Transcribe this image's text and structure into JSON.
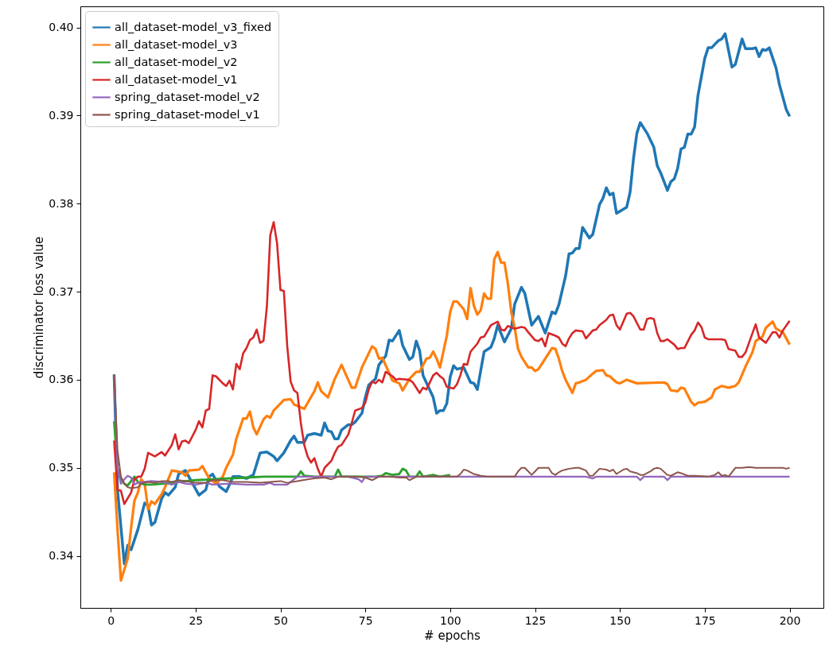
{
  "chart_data": {
    "type": "line",
    "xlabel": "# epochs",
    "ylabel": "discriminator loss value",
    "xlim": [
      -8.95,
      209.95
    ],
    "xticks": [
      0,
      25,
      50,
      75,
      100,
      125,
      150,
      175,
      200
    ],
    "ylim": [
      0.3341,
      0.4024
    ],
    "yticks": [
      0.34,
      0.35,
      0.36,
      0.37,
      0.38,
      0.39,
      {
        "value": 0.4,
        "label": "0.40"
      }
    ],
    "grid": false,
    "legend": "top left",
    "series": [
      {
        "name": "all_dataset-model_v3_fixed",
        "color": "#1f77b4",
        "x": [
          1,
          2,
          4,
          5,
          6,
          8,
          10,
          11,
          12,
          13,
          15,
          16,
          17,
          19,
          20,
          22,
          26,
          28,
          29,
          30,
          32,
          34,
          35,
          36,
          38,
          40,
          42,
          44,
          46,
          48,
          49,
          51,
          53,
          54,
          55,
          57,
          58,
          60,
          62,
          63,
          64,
          65,
          66,
          67,
          68,
          70,
          71,
          72,
          74,
          75,
          76,
          78,
          79,
          81,
          82,
          83,
          85,
          86,
          88,
          89,
          90,
          91,
          92,
          95,
          96,
          97,
          98,
          99,
          100,
          101,
          102,
          104,
          106,
          107,
          108,
          110,
          112,
          113,
          114,
          116,
          118,
          119,
          121,
          122,
          124,
          126,
          128,
          130,
          131,
          132,
          134,
          135,
          136,
          137,
          138,
          139,
          141,
          142,
          144,
          145,
          146,
          147,
          148,
          149,
          152,
          153,
          154,
          155,
          156,
          158,
          160,
          161,
          162,
          164,
          165,
          166,
          167,
          168,
          169,
          170,
          171,
          172,
          173,
          175,
          176,
          177,
          178,
          179,
          180,
          181,
          183,
          184,
          186,
          187,
          189,
          190,
          191,
          192,
          193,
          194,
          196,
          197,
          199,
          200
        ],
        "values": [
          0.3606,
          0.3475,
          0.3391,
          0.3412,
          0.3407,
          0.343,
          0.346,
          0.3457,
          0.3435,
          0.3438,
          0.3465,
          0.3472,
          0.3469,
          0.3478,
          0.3493,
          0.3497,
          0.3469,
          0.3475,
          0.349,
          0.3493,
          0.3479,
          0.3473,
          0.3481,
          0.349,
          0.349,
          0.3488,
          0.3492,
          0.3517,
          0.3518,
          0.3513,
          0.3508,
          0.3517,
          0.3531,
          0.3536,
          0.3529,
          0.3529,
          0.3537,
          0.3539,
          0.3537,
          0.3551,
          0.3542,
          0.3541,
          0.3533,
          0.3533,
          0.3543,
          0.3549,
          0.3549,
          0.3552,
          0.3562,
          0.358,
          0.3594,
          0.3601,
          0.3617,
          0.3627,
          0.3645,
          0.3644,
          0.3656,
          0.3639,
          0.3623,
          0.3626,
          0.3644,
          0.3633,
          0.3605,
          0.358,
          0.3562,
          0.3565,
          0.3565,
          0.3573,
          0.3603,
          0.3616,
          0.3612,
          0.3614,
          0.3597,
          0.3596,
          0.3589,
          0.3632,
          0.3637,
          0.3647,
          0.3662,
          0.3643,
          0.3658,
          0.3686,
          0.3705,
          0.3698,
          0.3662,
          0.3672,
          0.3653,
          0.3677,
          0.3675,
          0.3685,
          0.3718,
          0.3743,
          0.3744,
          0.3749,
          0.3749,
          0.3773,
          0.3761,
          0.3765,
          0.3799,
          0.3806,
          0.3818,
          0.381,
          0.3812,
          0.3789,
          0.3796,
          0.3813,
          0.3851,
          0.388,
          0.3892,
          0.388,
          0.3864,
          0.3843,
          0.3835,
          0.3815,
          0.3825,
          0.3828,
          0.384,
          0.3862,
          0.3864,
          0.3879,
          0.3879,
          0.3887,
          0.3923,
          0.3965,
          0.3977,
          0.3977,
          0.3981,
          0.3985,
          0.3987,
          0.3993,
          0.3955,
          0.3958,
          0.3987,
          0.3976,
          0.3976,
          0.3977,
          0.3967,
          0.3975,
          0.3974,
          0.3977,
          0.3954,
          0.3935,
          0.3907,
          0.3899
        ]
      },
      {
        "name": "all_dataset-model_v3",
        "color": "#ff7f0e",
        "x": [
          1,
          2,
          3,
          5,
          6,
          7,
          8,
          9,
          10,
          11,
          12,
          13,
          15,
          16,
          18,
          21,
          22,
          23,
          26,
          27,
          29,
          31,
          33,
          34,
          36,
          37,
          39,
          40,
          41,
          42,
          43,
          45,
          46,
          47,
          48,
          51,
          53,
          54,
          57,
          60,
          61,
          62,
          64,
          66,
          68,
          71,
          72,
          74,
          77,
          78,
          79,
          80,
          82,
          83,
          85,
          86,
          88,
          90,
          91,
          93,
          94,
          95,
          96,
          97,
          99,
          100,
          101,
          102,
          104,
          105,
          106,
          107,
          108,
          109,
          110,
          111,
          112,
          113,
          114,
          115,
          116,
          117,
          118,
          119,
          120,
          121,
          123,
          124,
          125,
          126,
          128,
          130,
          131,
          132,
          133,
          134,
          136,
          137,
          138,
          140,
          142,
          143,
          145,
          146,
          147,
          149,
          150,
          152,
          155,
          163,
          164,
          165,
          167,
          168,
          169,
          171,
          172,
          173,
          175,
          177,
          178,
          180,
          182,
          184,
          185,
          187,
          189,
          190,
          192,
          193,
          195,
          196,
          198,
          200
        ],
        "values": [
          0.3495,
          0.343,
          0.3372,
          0.3397,
          0.3432,
          0.3463,
          0.3472,
          0.3487,
          0.3482,
          0.3453,
          0.3462,
          0.3459,
          0.347,
          0.3478,
          0.3497,
          0.3495,
          0.3491,
          0.3497,
          0.3498,
          0.3502,
          0.3488,
          0.3482,
          0.349,
          0.35,
          0.3515,
          0.3533,
          0.3556,
          0.3556,
          0.3564,
          0.3546,
          0.3538,
          0.3555,
          0.3559,
          0.3557,
          0.3565,
          0.3577,
          0.3578,
          0.3572,
          0.3567,
          0.3587,
          0.3597,
          0.3587,
          0.358,
          0.3601,
          0.3617,
          0.3591,
          0.3591,
          0.3614,
          0.3638,
          0.3635,
          0.3624,
          0.3625,
          0.3608,
          0.3599,
          0.3596,
          0.3588,
          0.3601,
          0.3609,
          0.3609,
          0.3624,
          0.3625,
          0.3632,
          0.3624,
          0.3614,
          0.365,
          0.3677,
          0.3689,
          0.3689,
          0.368,
          0.3669,
          0.3704,
          0.3684,
          0.3674,
          0.3679,
          0.3698,
          0.3692,
          0.3692,
          0.3737,
          0.3745,
          0.3733,
          0.3733,
          0.3709,
          0.3677,
          0.3659,
          0.3635,
          0.3626,
          0.3614,
          0.3614,
          0.361,
          0.3612,
          0.3624,
          0.3636,
          0.3635,
          0.3624,
          0.361,
          0.36,
          0.3585,
          0.3596,
          0.3597,
          0.36,
          0.3607,
          0.361,
          0.3611,
          0.3605,
          0.3604,
          0.3597,
          0.3596,
          0.36,
          0.3596,
          0.3597,
          0.3595,
          0.3588,
          0.3587,
          0.3591,
          0.359,
          0.3575,
          0.3571,
          0.3574,
          0.3575,
          0.358,
          0.3589,
          0.3593,
          0.3591,
          0.3593,
          0.3597,
          0.3615,
          0.3631,
          0.3644,
          0.3649,
          0.3659,
          0.3666,
          0.3658,
          0.3654,
          0.364
        ]
      },
      {
        "name": "all_dataset-model_v2",
        "color": "#2ca02c",
        "x": [
          1,
          2,
          3,
          4,
          5,
          6,
          7,
          8,
          10,
          12,
          15,
          20,
          25,
          30,
          35,
          40,
          45,
          50,
          55,
          56,
          57,
          60,
          62,
          64,
          66,
          67,
          68,
          70,
          75,
          78,
          80,
          81,
          83,
          85,
          86,
          87,
          88,
          90,
          91,
          92,
          95,
          97,
          100
        ],
        "values": [
          0.3553,
          0.35,
          0.3488,
          0.3482,
          0.348,
          0.3485,
          0.349,
          0.3484,
          0.3481,
          0.3481,
          0.3482,
          0.3484,
          0.3486,
          0.3487,
          0.3488,
          0.3489,
          0.349,
          0.349,
          0.349,
          0.3496,
          0.3491,
          0.349,
          0.349,
          0.349,
          0.349,
          0.3498,
          0.349,
          0.349,
          0.349,
          0.349,
          0.3491,
          0.3494,
          0.3492,
          0.3493,
          0.3499,
          0.3497,
          0.349,
          0.349,
          0.3496,
          0.349,
          0.3492,
          0.349,
          0.3492
        ]
      },
      {
        "name": "all_dataset-model_v1",
        "color": "#d62728",
        "x": [
          1,
          2,
          3,
          4,
          6,
          7,
          8,
          9,
          10,
          11,
          13,
          15,
          16,
          18,
          19,
          20,
          21,
          22,
          23,
          25,
          26,
          27,
          28,
          29,
          30,
          31,
          33,
          34,
          35,
          36,
          37,
          38,
          39,
          40,
          41,
          42,
          43,
          44,
          45,
          46,
          47,
          48,
          49,
          50,
          51,
          52,
          53,
          54,
          55,
          56,
          57,
          58,
          59,
          60,
          61,
          62,
          63,
          65,
          66,
          67,
          68,
          70,
          71,
          72,
          74,
          75,
          76,
          77,
          78,
          79,
          80,
          81,
          83,
          84,
          85,
          88,
          89,
          91,
          92,
          93,
          95,
          96,
          97,
          98,
          99,
          101,
          102,
          103,
          104,
          105,
          106,
          108,
          109,
          110,
          112,
          114,
          115,
          116,
          117,
          119,
          121,
          122,
          123,
          125,
          126,
          127,
          128,
          129,
          131,
          132,
          133,
          134,
          135,
          136,
          137,
          139,
          140,
          142,
          143,
          144,
          146,
          147,
          148,
          149,
          150,
          152,
          153,
          154,
          156,
          157,
          158,
          159,
          160,
          161,
          162,
          163,
          164,
          166,
          167,
          168,
          169,
          171,
          172,
          173,
          174,
          175,
          176,
          178,
          180,
          181,
          182,
          184,
          185,
          186,
          187,
          190,
          191,
          193,
          195,
          196,
          197,
          198,
          200
        ],
        "values": [
          0.3531,
          0.3475,
          0.3474,
          0.3459,
          0.3472,
          0.3487,
          0.349,
          0.349,
          0.3499,
          0.3517,
          0.3513,
          0.3518,
          0.3514,
          0.3526,
          0.3538,
          0.3521,
          0.353,
          0.3531,
          0.3528,
          0.3543,
          0.3553,
          0.3546,
          0.3565,
          0.3567,
          0.3605,
          0.3604,
          0.3596,
          0.3593,
          0.3599,
          0.3589,
          0.3618,
          0.3612,
          0.363,
          0.3636,
          0.3645,
          0.3648,
          0.3657,
          0.3642,
          0.3644,
          0.3683,
          0.3764,
          0.3779,
          0.3755,
          0.3702,
          0.3701,
          0.3638,
          0.3598,
          0.3588,
          0.3585,
          0.3551,
          0.3526,
          0.3513,
          0.3506,
          0.3511,
          0.3499,
          0.349,
          0.35,
          0.3508,
          0.3517,
          0.3524,
          0.3526,
          0.3538,
          0.3551,
          0.3565,
          0.3568,
          0.3574,
          0.3589,
          0.3598,
          0.3596,
          0.36,
          0.3597,
          0.3609,
          0.3604,
          0.36,
          0.3601,
          0.36,
          0.3597,
          0.3585,
          0.3591,
          0.3589,
          0.3605,
          0.3608,
          0.3604,
          0.3601,
          0.3592,
          0.359,
          0.3595,
          0.3605,
          0.3618,
          0.3617,
          0.3632,
          0.3641,
          0.3648,
          0.3649,
          0.3662,
          0.3666,
          0.3657,
          0.3656,
          0.3661,
          0.3658,
          0.366,
          0.3659,
          0.3654,
          0.3645,
          0.3644,
          0.3647,
          0.3638,
          0.3653,
          0.365,
          0.3648,
          0.3641,
          0.3638,
          0.3647,
          0.3653,
          0.3656,
          0.3655,
          0.3647,
          0.3656,
          0.3657,
          0.3662,
          0.3668,
          0.3673,
          0.3674,
          0.3662,
          0.3657,
          0.3675,
          0.3676,
          0.3672,
          0.3657,
          0.3657,
          0.3669,
          0.367,
          0.3669,
          0.3653,
          0.3644,
          0.3644,
          0.3646,
          0.364,
          0.3635,
          0.3636,
          0.3636,
          0.3651,
          0.3656,
          0.3665,
          0.366,
          0.3648,
          0.3646,
          0.3646,
          0.3646,
          0.3645,
          0.3635,
          0.3633,
          0.3626,
          0.3626,
          0.3631,
          0.3663,
          0.3648,
          0.3642,
          0.3654,
          0.3654,
          0.3648,
          0.3656,
          0.3667
        ]
      },
      {
        "name": "spring_dataset-model_v2",
        "color": "#9467bd",
        "x": [
          1,
          2,
          3,
          4,
          5,
          6,
          7,
          8,
          10,
          12,
          15,
          18,
          20,
          22,
          25,
          28,
          30,
          35,
          40,
          45,
          47,
          48,
          52,
          53,
          55,
          60,
          65,
          70,
          73,
          74,
          75,
          80,
          90,
          100,
          120,
          140,
          142,
          143,
          150,
          155,
          156,
          157,
          163,
          164,
          165,
          180,
          200
        ],
        "values": [
          0.3606,
          0.35,
          0.3482,
          0.3487,
          0.3491,
          0.3489,
          0.3481,
          0.3483,
          0.3484,
          0.3485,
          0.3484,
          0.3481,
          0.3484,
          0.3482,
          0.3481,
          0.3483,
          0.3481,
          0.3482,
          0.3481,
          0.3481,
          0.3483,
          0.3481,
          0.3481,
          0.3484,
          0.349,
          0.349,
          0.349,
          0.349,
          0.3487,
          0.3484,
          0.349,
          0.349,
          0.349,
          0.349,
          0.349,
          0.349,
          0.3488,
          0.349,
          0.349,
          0.349,
          0.3486,
          0.349,
          0.349,
          0.3486,
          0.349,
          0.349,
          0.349
        ]
      },
      {
        "name": "spring_dataset-model_v1",
        "color": "#8c564b",
        "x": [
          1,
          2,
          3,
          4,
          5,
          6,
          8,
          9,
          11,
          13,
          15,
          17,
          18,
          20,
          22,
          25,
          28,
          30,
          33,
          36,
          40,
          44,
          47,
          50,
          52,
          55,
          58,
          60,
          63,
          65,
          67,
          70,
          73,
          75,
          77,
          79,
          82,
          85,
          87,
          88,
          90,
          93,
          97,
          100,
          102,
          103,
          104,
          105,
          107,
          109,
          111,
          115,
          119,
          120,
          121,
          122,
          123,
          124,
          125,
          126,
          128,
          129,
          130,
          131,
          132,
          133,
          134,
          135,
          137,
          138,
          140,
          141,
          142,
          144,
          146,
          147,
          148,
          149,
          151,
          152,
          153,
          155,
          156,
          157,
          159,
          160,
          161,
          162,
          164,
          165,
          167,
          168,
          170,
          172,
          176,
          178,
          179,
          180,
          181,
          182,
          184,
          186,
          188,
          190,
          198,
          199,
          200
        ],
        "values": [
          0.3606,
          0.352,
          0.349,
          0.3482,
          0.3478,
          0.3477,
          0.3478,
          0.3482,
          0.3484,
          0.3483,
          0.3485,
          0.3485,
          0.3484,
          0.3486,
          0.3485,
          0.3483,
          0.3483,
          0.3486,
          0.3486,
          0.3484,
          0.3484,
          0.3483,
          0.3484,
          0.3485,
          0.3483,
          0.3485,
          0.3487,
          0.3488,
          0.3489,
          0.3487,
          0.349,
          0.349,
          0.349,
          0.3489,
          0.3486,
          0.349,
          0.349,
          0.3489,
          0.3489,
          0.3486,
          0.349,
          0.349,
          0.349,
          0.349,
          0.349,
          0.3493,
          0.3498,
          0.3497,
          0.3493,
          0.3491,
          0.349,
          0.349,
          0.349,
          0.3496,
          0.35,
          0.35,
          0.3496,
          0.3492,
          0.3496,
          0.35,
          0.35,
          0.35,
          0.3494,
          0.3492,
          0.3495,
          0.3497,
          0.3498,
          0.3499,
          0.35,
          0.35,
          0.3497,
          0.3491,
          0.3491,
          0.3499,
          0.3498,
          0.3496,
          0.3498,
          0.3493,
          0.3498,
          0.3499,
          0.3496,
          0.3494,
          0.3492,
          0.3492,
          0.3496,
          0.3499,
          0.35,
          0.3499,
          0.3492,
          0.3491,
          0.3495,
          0.3494,
          0.3491,
          0.3491,
          0.349,
          0.3492,
          0.3495,
          0.3491,
          0.3492,
          0.349,
          0.35,
          0.35,
          0.3501,
          0.35,
          0.35,
          0.3499,
          0.35
        ]
      }
    ]
  }
}
